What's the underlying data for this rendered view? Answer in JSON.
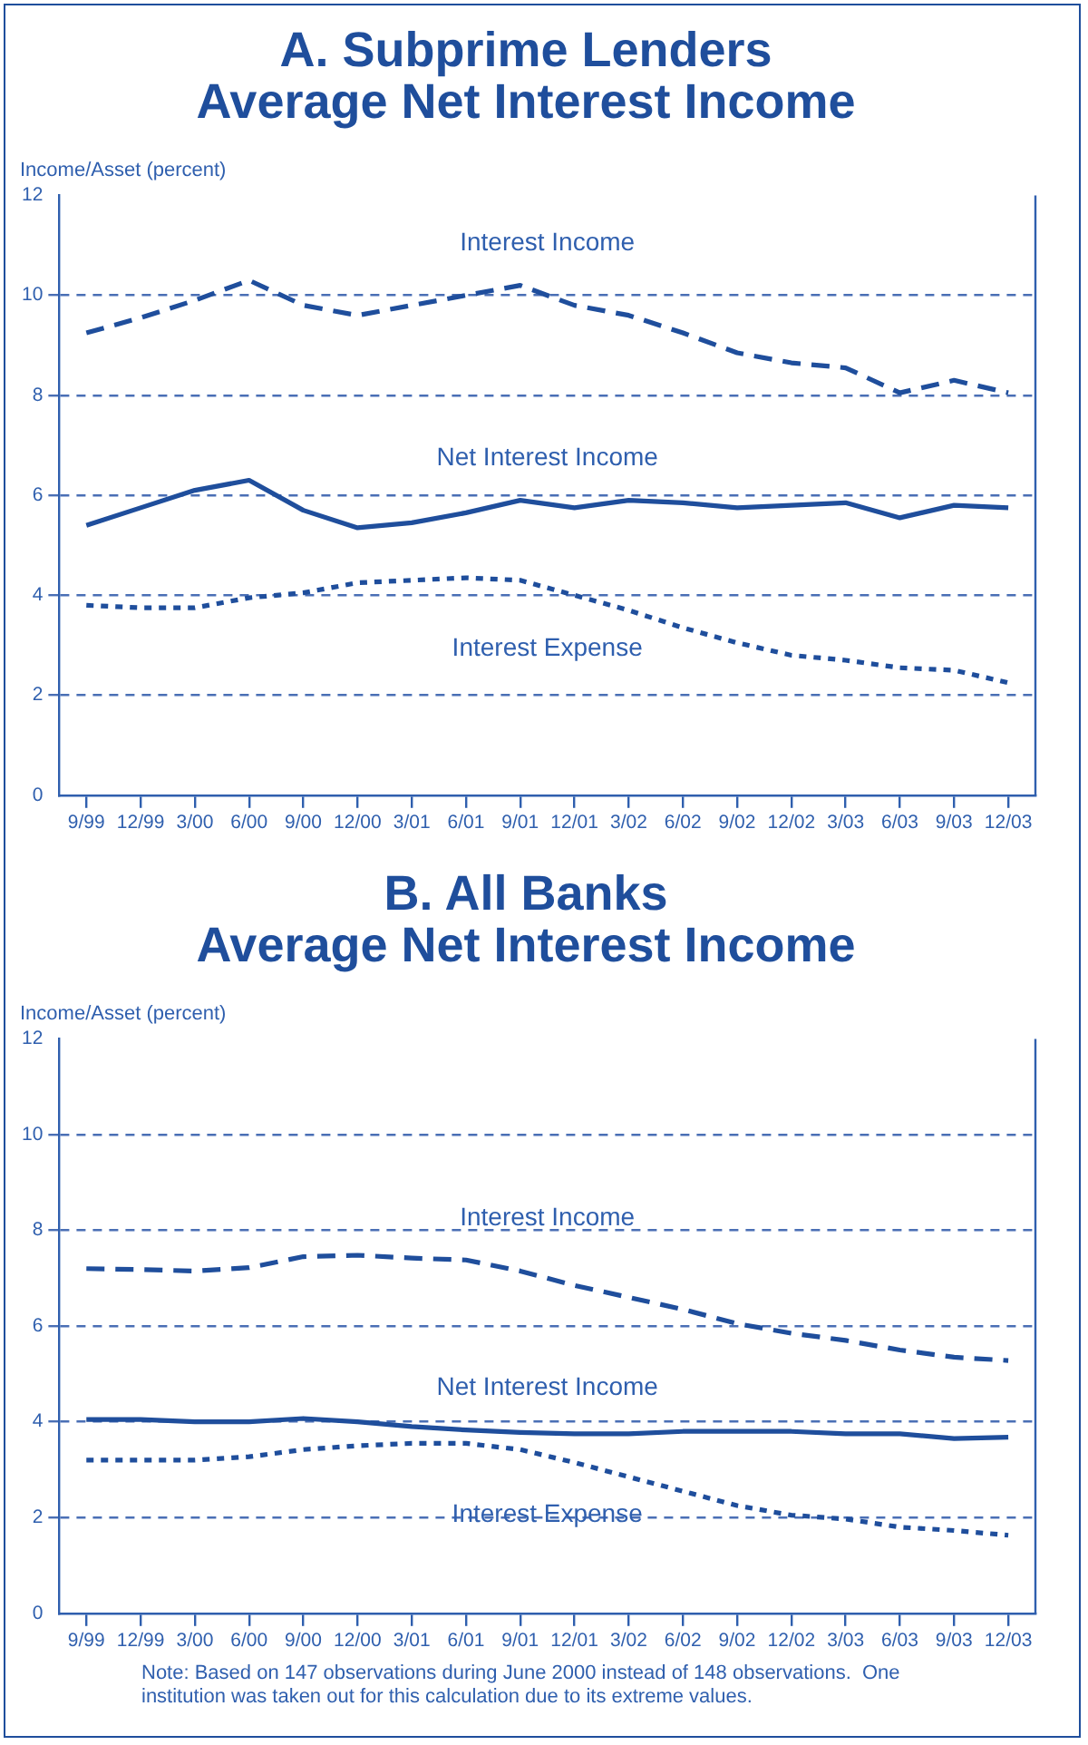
{
  "chart_data": [
    {
      "type": "line",
      "title": "A. Subprime Lenders\nAverage Net Interest Income",
      "ylabel": "Income/Asset (percent)",
      "categories": [
        "9/99",
        "12/99",
        "3/00",
        "6/00",
        "9/00",
        "12/00",
        "3/01",
        "6/01",
        "9/01",
        "12/01",
        "3/02",
        "6/02",
        "9/02",
        "12/02",
        "3/03",
        "6/03",
        "9/03",
        "12/03"
      ],
      "ylim": [
        0,
        12
      ],
      "yticks": [
        0,
        2,
        4,
        6,
        8,
        10,
        12
      ],
      "grid": "y",
      "legend": false,
      "marker": "none",
      "series": [
        {
          "name": "Interest Income",
          "color": "#1f4e9c",
          "line_style": "dashed",
          "values": [
            9.25,
            9.55,
            9.9,
            10.3,
            9.8,
            9.6,
            9.8,
            10.0,
            10.2,
            9.8,
            9.6,
            9.25,
            8.85,
            8.65,
            8.55,
            8.05,
            8.3,
            8.05
          ]
        },
        {
          "name": "Net Interest Income",
          "color": "#1f4e9c",
          "line_style": "solid",
          "values": [
            5.4,
            5.75,
            6.1,
            6.3,
            5.7,
            5.35,
            5.45,
            5.65,
            5.9,
            5.75,
            5.9,
            5.85,
            5.75,
            5.8,
            5.85,
            5.55,
            5.8,
            5.75
          ]
        },
        {
          "name": "Interest Expense",
          "color": "#1f4e9c",
          "line_style": "dotted",
          "values": [
            3.8,
            3.75,
            3.75,
            3.95,
            4.05,
            4.25,
            4.3,
            4.35,
            4.3,
            4.0,
            3.7,
            3.35,
            3.05,
            2.8,
            2.7,
            2.55,
            2.5,
            2.25
          ]
        }
      ]
    },
    {
      "type": "line",
      "title": "B. All Banks\nAverage Net Interest Income",
      "ylabel": "Income/Asset (percent)",
      "categories": [
        "9/99",
        "12/99",
        "3/00",
        "6/00",
        "9/00",
        "12/00",
        "3/01",
        "6/01",
        "9/01",
        "12/01",
        "3/02",
        "6/02",
        "9/02",
        "12/02",
        "3/03",
        "6/03",
        "9/03",
        "12/03"
      ],
      "ylim": [
        0,
        12
      ],
      "yticks": [
        0,
        2,
        4,
        6,
        8,
        10,
        12
      ],
      "grid": "y",
      "legend": false,
      "marker": "none",
      "annotations": [
        "Note: Based on 147 observations during June 2000 instead of 148 observations.  One institution was taken out for this calculation due to its extreme values."
      ],
      "series": [
        {
          "name": "Interest Income",
          "color": "#1f4e9c",
          "line_style": "dashed",
          "values": [
            7.2,
            7.18,
            7.15,
            7.22,
            7.45,
            7.48,
            7.42,
            7.38,
            7.15,
            6.85,
            6.6,
            6.35,
            6.05,
            5.85,
            5.7,
            5.5,
            5.35,
            5.28
          ]
        },
        {
          "name": "Net Interest Income",
          "color": "#1f4e9c",
          "line_style": "solid",
          "values": [
            4.05,
            4.05,
            4.0,
            4.0,
            4.07,
            4.0,
            3.9,
            3.83,
            3.78,
            3.75,
            3.75,
            3.8,
            3.8,
            3.8,
            3.75,
            3.75,
            3.65,
            3.68
          ]
        },
        {
          "name": "Interest Expense",
          "color": "#1f4e9c",
          "line_style": "dotted",
          "values": [
            3.2,
            3.2,
            3.2,
            3.27,
            3.42,
            3.5,
            3.55,
            3.55,
            3.42,
            3.15,
            2.85,
            2.55,
            2.25,
            2.05,
            1.97,
            1.8,
            1.73,
            1.63
          ]
        }
      ]
    }
  ]
}
